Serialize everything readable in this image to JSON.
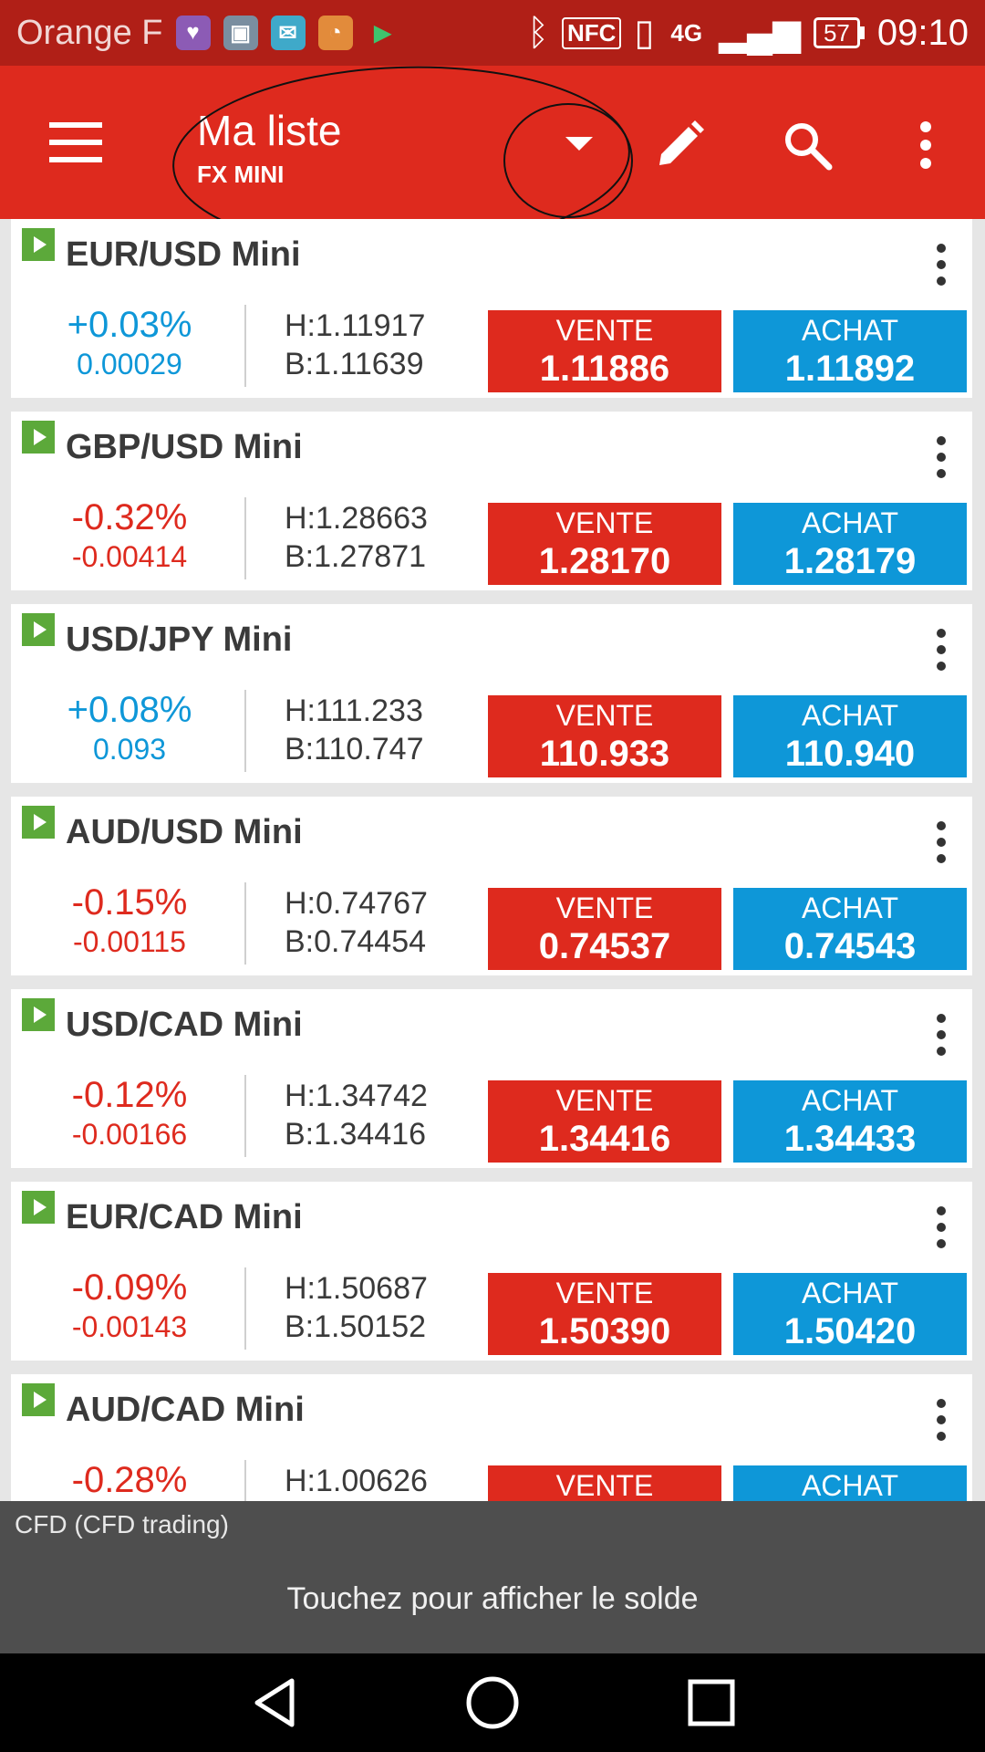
{
  "status_bar": {
    "carrier": "Orange F",
    "nfc": "NFC",
    "network": "4G",
    "battery": "57",
    "time": "09:10"
  },
  "app_bar": {
    "title": "Ma liste",
    "subtitle": "FX MINI"
  },
  "instruments": [
    {
      "name": "EUR/USD Mini",
      "change_pct": "+0.03%",
      "change_abs": "0.00029",
      "direction": "up",
      "high": "H:1.11917",
      "low": "B:1.11639",
      "sell_label": "VENTE",
      "sell_price": "1.11886",
      "buy_label": "ACHAT",
      "buy_price": "1.11892"
    },
    {
      "name": "GBP/USD Mini",
      "change_pct": "-0.32%",
      "change_abs": "-0.00414",
      "direction": "down",
      "high": "H:1.28663",
      "low": "B:1.27871",
      "sell_label": "VENTE",
      "sell_price": "1.28170",
      "buy_label": "ACHAT",
      "buy_price": "1.28179"
    },
    {
      "name": "USD/JPY Mini",
      "change_pct": "+0.08%",
      "change_abs": "0.093",
      "direction": "up",
      "high": "H:111.233",
      "low": "B:110.747",
      "sell_label": "VENTE",
      "sell_price": "110.933",
      "buy_label": "ACHAT",
      "buy_price": "110.940"
    },
    {
      "name": "AUD/USD Mini",
      "change_pct": "-0.15%",
      "change_abs": "-0.00115",
      "direction": "down",
      "high": "H:0.74767",
      "low": "B:0.74454",
      "sell_label": "VENTE",
      "sell_price": "0.74537",
      "buy_label": "ACHAT",
      "buy_price": "0.74543"
    },
    {
      "name": "USD/CAD Mini",
      "change_pct": "-0.12%",
      "change_abs": "-0.00166",
      "direction": "down",
      "high": "H:1.34742",
      "low": "B:1.34416",
      "sell_label": "VENTE",
      "sell_price": "1.34416",
      "buy_label": "ACHAT",
      "buy_price": "1.34433"
    },
    {
      "name": "EUR/CAD Mini",
      "change_pct": "-0.09%",
      "change_abs": "-0.00143",
      "direction": "down",
      "high": "H:1.50687",
      "low": "B:1.50152",
      "sell_label": "VENTE",
      "sell_price": "1.50390",
      "buy_label": "ACHAT",
      "buy_price": "1.50420"
    },
    {
      "name": "AUD/CAD Mini",
      "change_pct": "-0.28%",
      "change_abs": "",
      "direction": "down",
      "high": "H:1.00626",
      "low": "",
      "sell_label": "VENTE",
      "sell_price": "",
      "buy_label": "ACHAT",
      "buy_price": ""
    }
  ],
  "balance_panel": {
    "account": "CFD (CFD trading)",
    "hint": "Touchez pour afficher le solde"
  },
  "colors": {
    "app_bar": "#de2a1e",
    "status_bar": "#b01f17",
    "sell": "#de2a1e",
    "buy": "#0e97d8",
    "up": "#0e97d8",
    "down": "#de2a1e"
  }
}
